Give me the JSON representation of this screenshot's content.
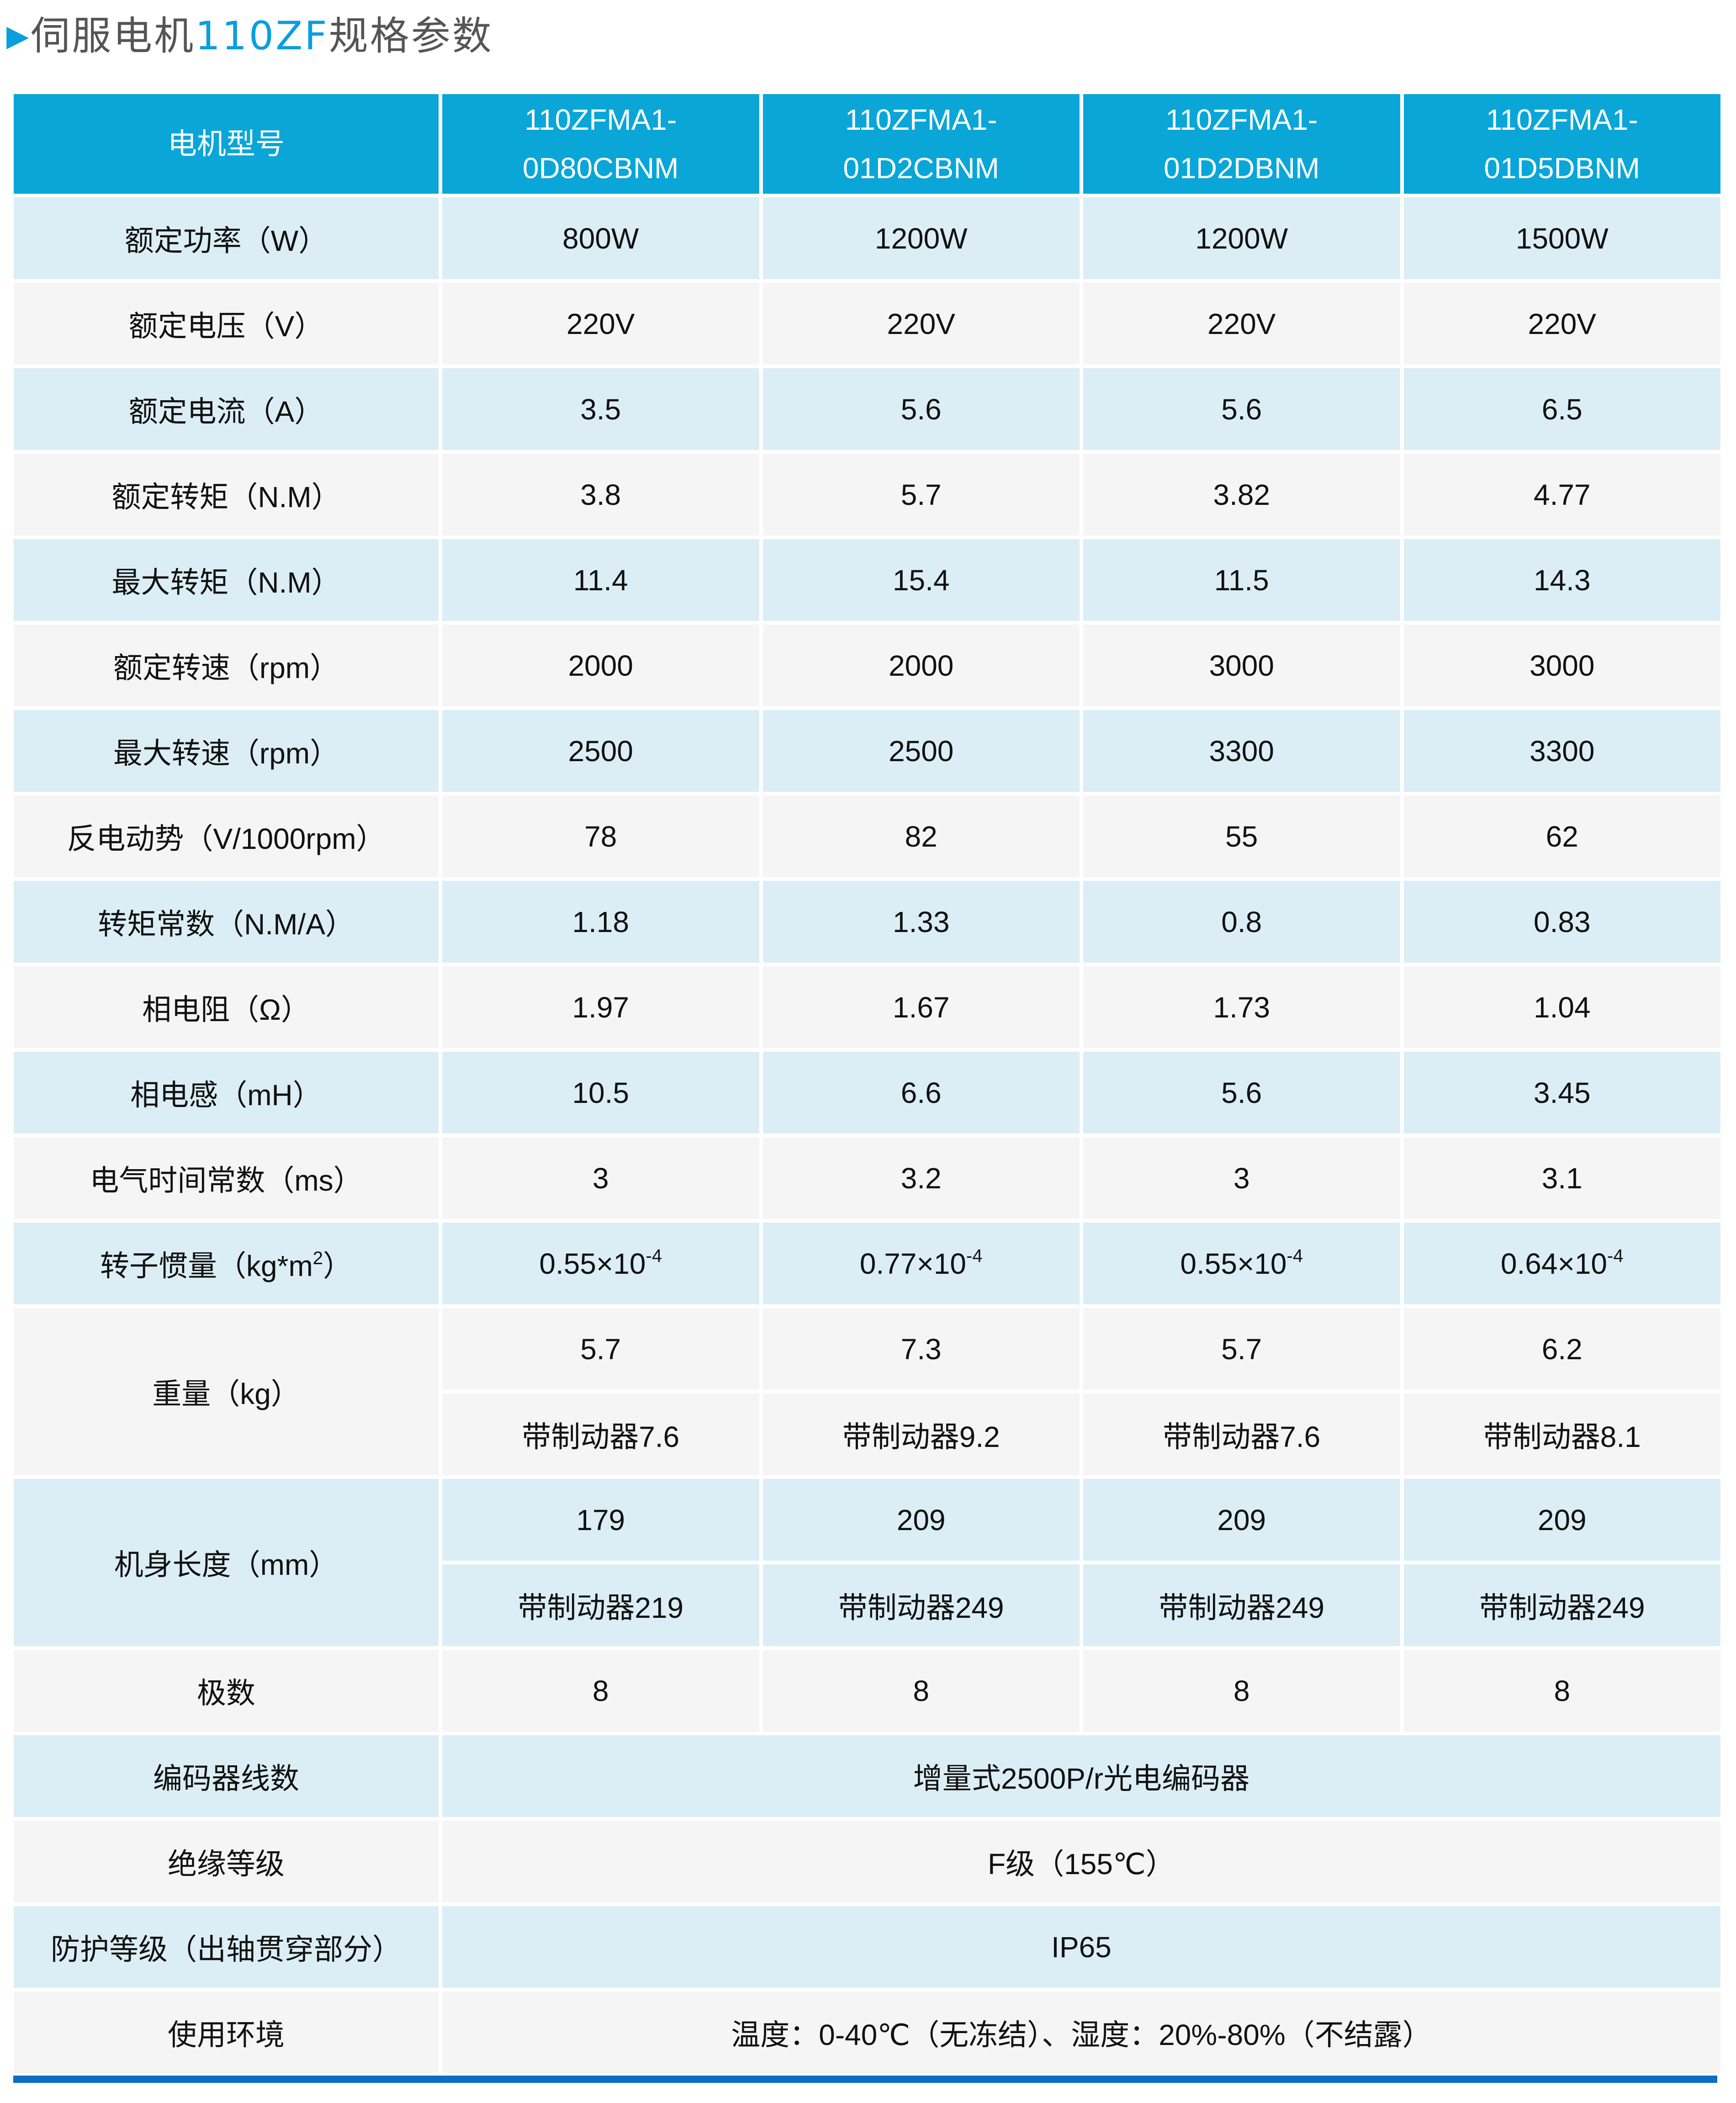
{
  "title": {
    "prefix": "伺服电机",
    "highlight": "110ZF",
    "suffix": "规格参数",
    "marker_icon": "triangle-right"
  },
  "colors": {
    "header": "#0aa6d8",
    "row_blue": "#dbeef5",
    "row_gray": "#f5f5f5",
    "accent": "#0a9ee0",
    "bottom_bar": "#0a6fc2"
  },
  "table": {
    "header": {
      "label": "电机型号",
      "models": [
        {
          "line1": "110ZFMA1-",
          "line2": "0D80CBNM"
        },
        {
          "line1": "110ZFMA1-",
          "line2": "01D2CBNM"
        },
        {
          "line1": "110ZFMA1-",
          "line2": "01D2DBNM"
        },
        {
          "line1": "110ZFMA1-",
          "line2": "01D5DBNM"
        }
      ]
    },
    "rows": [
      {
        "label": "额定功率（W）",
        "values": [
          "800W",
          "1200W",
          "1200W",
          "1500W"
        ]
      },
      {
        "label": "额定电压（V）",
        "values": [
          "220V",
          "220V",
          "220V",
          "220V"
        ]
      },
      {
        "label": "额定电流（A）",
        "values": [
          "3.5",
          "5.6",
          "5.6",
          "6.5"
        ]
      },
      {
        "label": "额定转矩（N.M）",
        "values": [
          "3.8",
          "5.7",
          "3.82",
          "4.77"
        ]
      },
      {
        "label": "最大转矩（N.M）",
        "values": [
          "11.4",
          "15.4",
          "11.5",
          "14.3"
        ]
      },
      {
        "label": "额定转速（rpm）",
        "values": [
          "2000",
          "2000",
          "3000",
          "3000"
        ]
      },
      {
        "label": "最大转速（rpm）",
        "values": [
          "2500",
          "2500",
          "3300",
          "3300"
        ]
      },
      {
        "label": "反电动势（V/1000rpm）",
        "values": [
          "78",
          "82",
          "55",
          "62"
        ]
      },
      {
        "label": "转矩常数（N.M/A）",
        "values": [
          "1.18",
          "1.33",
          "0.8",
          "0.83"
        ]
      },
      {
        "label": "相电阻（Ω）",
        "values": [
          "1.97",
          "1.67",
          "1.73",
          "1.04"
        ]
      },
      {
        "label": "相电感（mH）",
        "values": [
          "10.5",
          "6.6",
          "5.6",
          "3.45"
        ]
      },
      {
        "label": "电气时间常数（ms）",
        "values": [
          "3",
          "3.2",
          "3",
          "3.1"
        ]
      },
      {
        "label": "转子惯量（kg*m",
        "label_sup": "2",
        "label_end": "）",
        "values": [
          "0.55×10",
          "0.77×10",
          "0.55×10",
          "0.64×10"
        ],
        "value_sups": [
          "-4",
          "-4",
          "-4",
          "-4"
        ]
      },
      {
        "label": "重量（kg）",
        "values": [
          "5.7",
          "7.3",
          "5.7",
          "6.2"
        ],
        "values2": [
          "带制动器7.6",
          "带制动器9.2",
          "带制动器7.6",
          "带制动器8.1"
        ]
      },
      {
        "label": "机身长度（mm）",
        "values": [
          "179",
          "209",
          "209",
          "209"
        ],
        "values2": [
          "带制动器219",
          "带制动器249",
          "带制动器249",
          "带制动器249"
        ]
      },
      {
        "label": "极数",
        "values": [
          "8",
          "8",
          "8",
          "8"
        ]
      },
      {
        "label": "编码器线数",
        "span": "增量式2500P/r光电编码器"
      },
      {
        "label": "绝缘等级",
        "span": "F级（155℃）"
      },
      {
        "label": "防护等级（出轴贯穿部分）",
        "span": "IP65"
      },
      {
        "label": "使用环境",
        "span": "温度：0-40℃（无冻结）、湿度：20%-80%（不结露）"
      }
    ]
  }
}
